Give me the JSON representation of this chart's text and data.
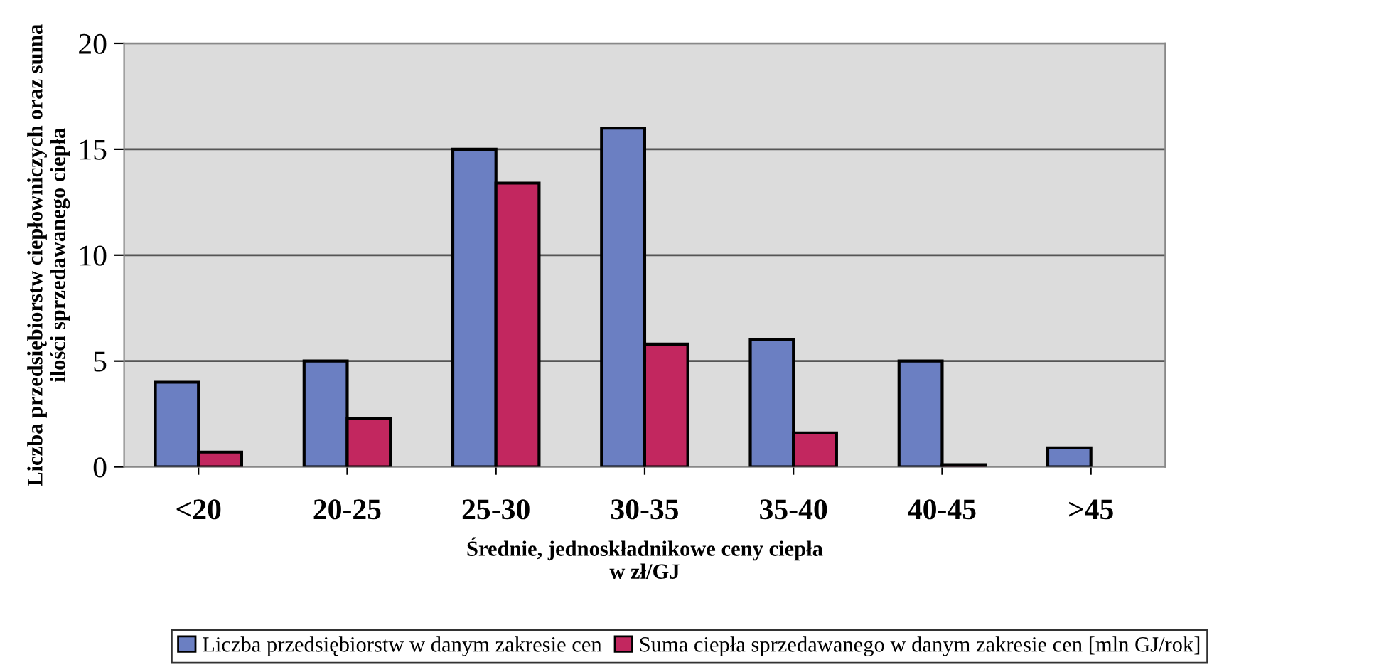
{
  "chart_data": {
    "type": "bar",
    "xlabel": "Średnie, jednoskładnikowe ceny ciepła\nw zł/GJ",
    "ylabel": "Liczba przedsiębiorstw ciepłowniczych oraz suma\nilości sprzedawanego ciepła",
    "categories": [
      "<20",
      "20-25",
      "25-30",
      "30-35",
      "35-40",
      "40-45",
      ">45"
    ],
    "series": [
      {
        "name": "Liczba przedsiębiorstw w danym zakresie cen",
        "color": "#6b7fc2",
        "values": [
          4,
          5,
          15,
          16,
          6,
          5,
          0.9
        ]
      },
      {
        "name": "Suma ciepła sprzedawanego w danym zakresie cen [mln GJ/rok]",
        "color": "#c2275f",
        "values": [
          0.7,
          2.3,
          13.4,
          5.8,
          1.6,
          0.1,
          null
        ]
      }
    ],
    "ylim": [
      0,
      20
    ],
    "yticks": [
      0,
      5,
      10,
      15,
      20
    ],
    "grid": "y",
    "legend": "bottom"
  }
}
